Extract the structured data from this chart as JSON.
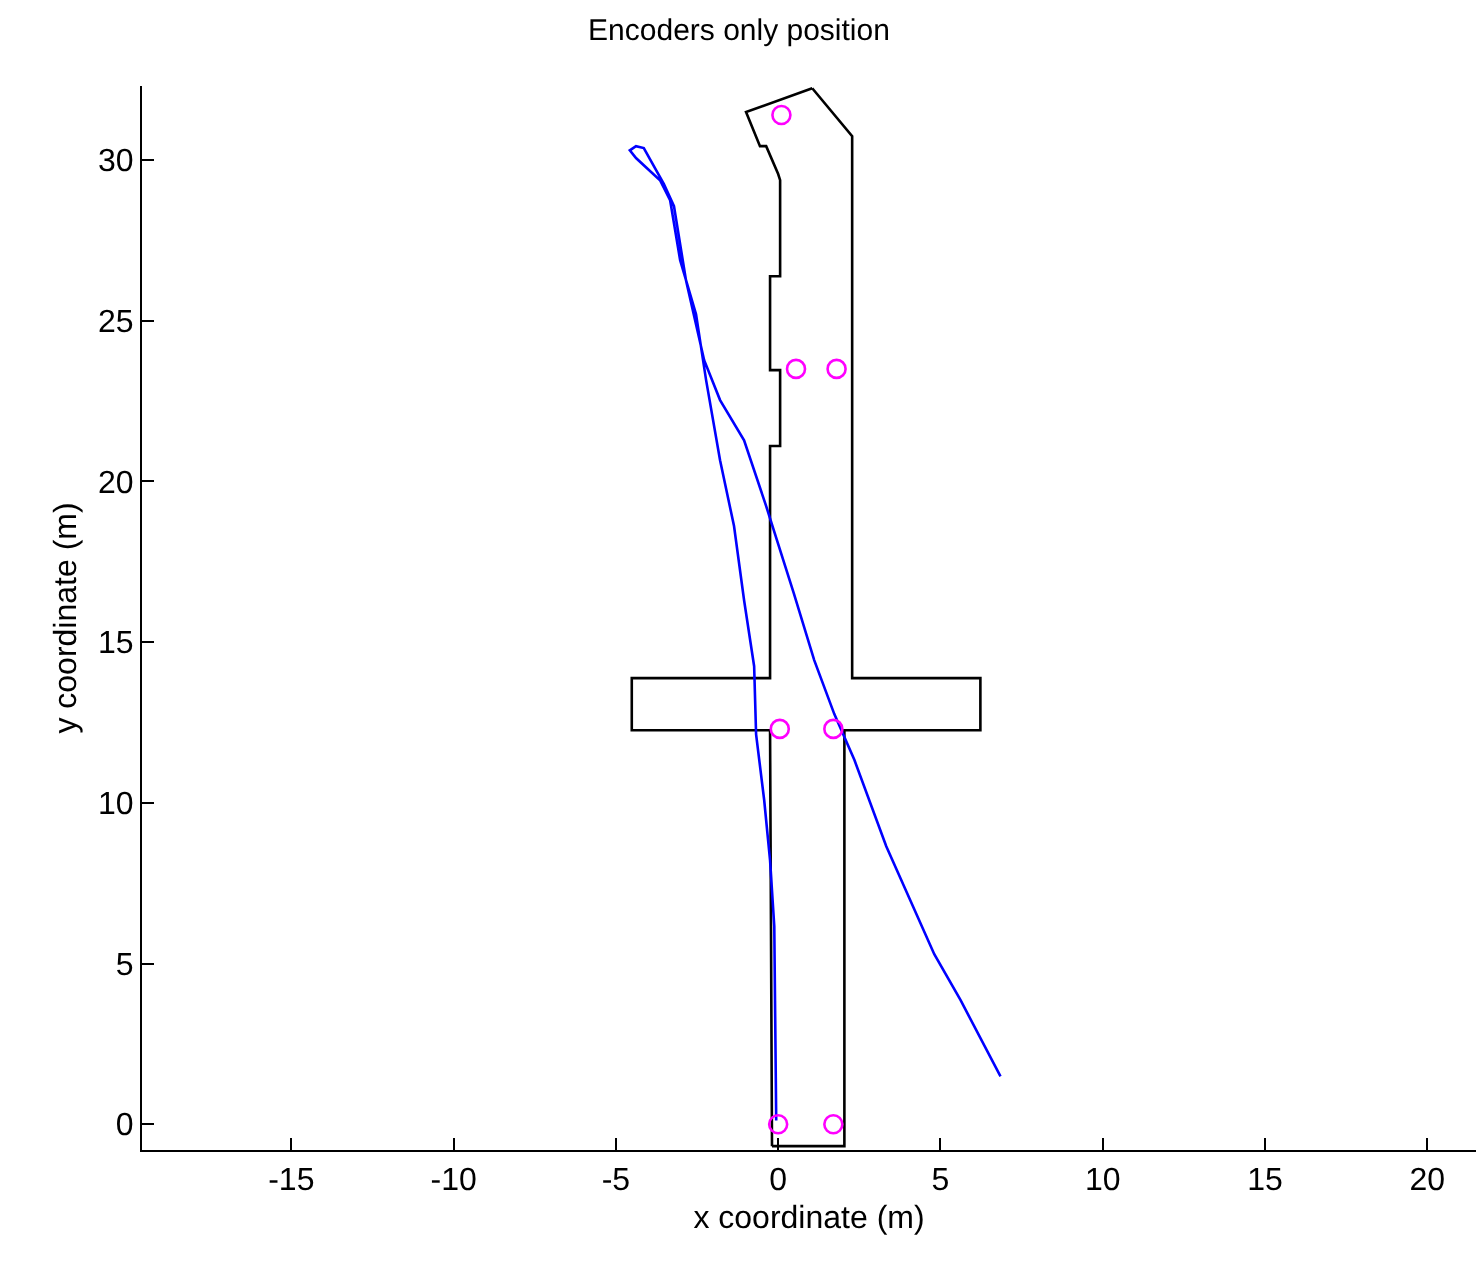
{
  "chart_data": {
    "type": "line",
    "title": "Encoders only position",
    "xlabel": "x coordinate (m)",
    "ylabel": "y coordinate (m)",
    "xlim": [
      -19.6,
      21.5
    ],
    "ylim": [
      -0.8,
      32.3
    ],
    "xticks": [
      -15,
      -10,
      -5,
      0,
      5,
      10,
      15,
      20
    ],
    "yticks": [
      0,
      5,
      10,
      15,
      20,
      25,
      30
    ],
    "series": [
      {
        "color": "#000000",
        "marker": "none",
        "x": [
          -0.19,
          2.04,
          2.04,
          6.23,
          6.23,
          2.28,
          2.28,
          1.05
        ],
        "values": [
          -0.68,
          -0.68,
          12.26,
          12.26,
          13.88,
          13.88,
          30.74,
          32.23
        ]
      },
      {
        "color": "#000000",
        "marker": "none",
        "x": [
          1.05,
          -0.99,
          -0.56,
          -0.37,
          0,
          0.06,
          0.06,
          -0.25,
          -0.25,
          0.06,
          0.06,
          -0.25,
          -0.25,
          -4.51,
          -4.51,
          -0.25,
          -0.19
        ],
        "values": [
          32.23,
          31.49,
          30.43,
          30.43,
          29.56,
          29.37,
          26.38,
          26.38,
          23.46,
          23.46,
          21.1,
          21.1,
          13.88,
          13.88,
          12.26,
          12.26,
          -0.68
        ]
      },
      {
        "color": "#0000ff",
        "marker": "none",
        "x": [
          -0.06,
          -0.12,
          -0.25,
          -0.43,
          -0.68,
          -0.74,
          -1.05,
          -1.36,
          -1.79,
          -2.22,
          -2.53,
          -3.02,
          -3.33,
          -3.64,
          -4.38,
          -4.57,
          -4.38,
          -4.14,
          -3.52,
          -3.21,
          -2.84,
          -2.28,
          -1.79,
          -1.05,
          -0.37,
          0.49,
          1.11,
          1.73,
          2.35,
          3.33,
          4.81,
          5.62,
          6.85
        ],
        "values": [
          0.12,
          6.16,
          8.21,
          10.08,
          12.13,
          14.25,
          16.3,
          18.61,
          20.66,
          23.15,
          25.2,
          26.88,
          28.75,
          29.37,
          30.06,
          30.3,
          30.43,
          30.37,
          29.25,
          28.56,
          26.26,
          23.77,
          22.53,
          21.28,
          19.23,
          16.49,
          14.44,
          12.76,
          11.33,
          8.65,
          5.29,
          3.86,
          1.49
        ]
      },
      {
        "type": "scatter",
        "color": "#ff00ff",
        "marker": "circle",
        "x": [
          0.1,
          0.55,
          1.8,
          0.05,
          1.7,
          0,
          1.7
        ],
        "values": [
          31.4,
          23.5,
          23.5,
          12.3,
          12.3,
          0,
          0
        ]
      }
    ]
  }
}
